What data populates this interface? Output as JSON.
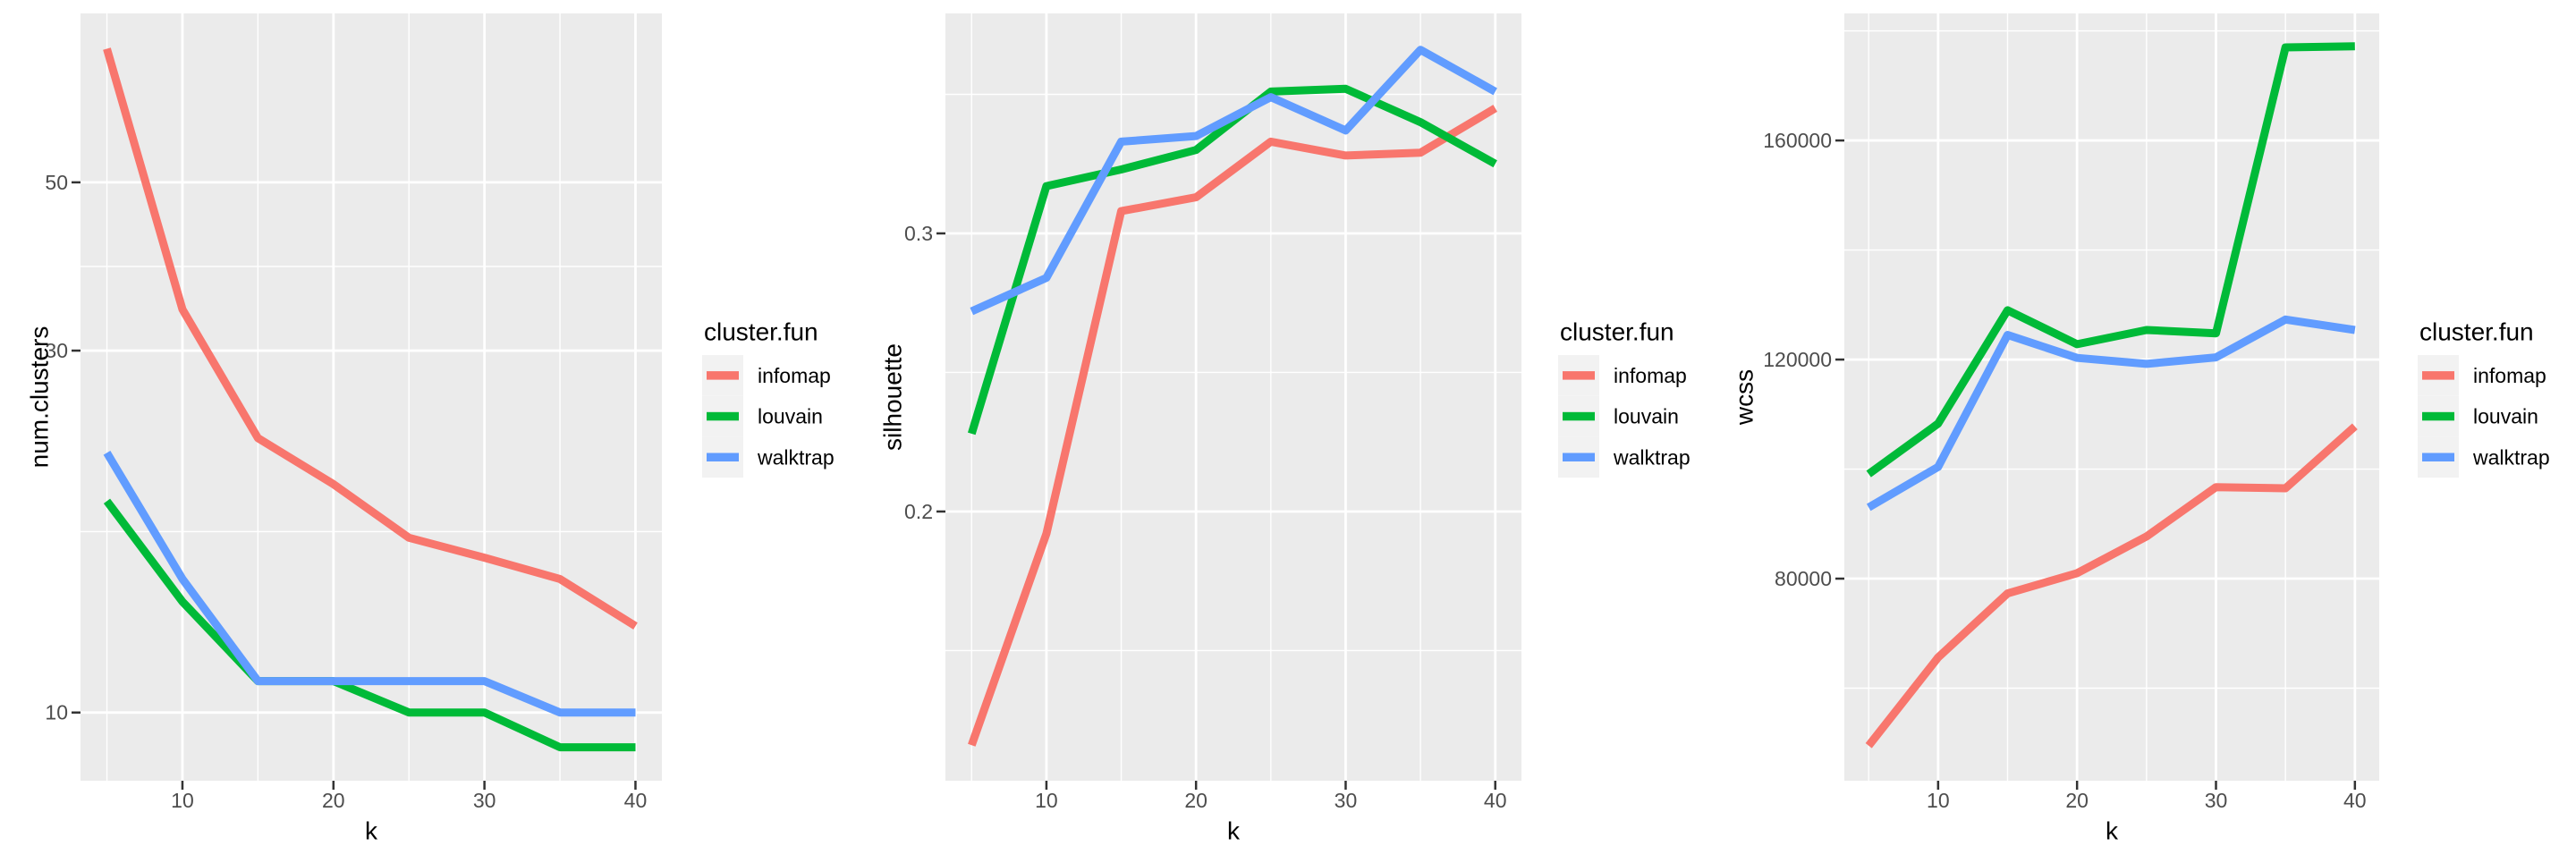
{
  "figure": {
    "background": "#ffffff",
    "panel_bg": "#EBEBEB",
    "grid_color": "#FFFFFF",
    "tick_mark_color": "#333333",
    "tick_label_color": "#4D4D4D",
    "axis_title_color": "#000000",
    "legend_key_bg": "#F2F2F2",
    "legend_text_color": "#000000"
  },
  "legend": {
    "title": "cluster.fun",
    "items": [
      {
        "label": "infomap",
        "color": "#F8766D"
      },
      {
        "label": "louvain",
        "color": "#00BA38"
      },
      {
        "label": "walktrap",
        "color": "#619CFF"
      }
    ]
  },
  "chart_data": [
    {
      "type": "line",
      "title": "",
      "xlabel": "k",
      "ylabel": "num.clusters",
      "legend_title": "cluster.fun",
      "legend_position": "right",
      "grid": true,
      "x": [
        5,
        10,
        15,
        20,
        25,
        30,
        35,
        40
      ],
      "xlim": [
        3.25,
        41.75
      ],
      "x_tick_values": [
        10,
        20,
        30,
        40
      ],
      "x_tick_labels": [
        "10",
        "20",
        "30",
        "40"
      ],
      "x_minor_gridlines": [
        5,
        15,
        25,
        35
      ],
      "yscale": "log10",
      "ylim": [
        8.13,
        83.5
      ],
      "y_tick_values": [
        10,
        30,
        50
      ],
      "y_tick_labels": [
        "10",
        "30",
        "50"
      ],
      "y_minor_gridlines": [
        17.32,
        38.73
      ],
      "series": [
        {
          "name": "infomap",
          "color": "#F8766D",
          "values": [
            75,
            34,
            23,
            20,
            17,
            16,
            15,
            13
          ]
        },
        {
          "name": "louvain",
          "color": "#00BA38",
          "values": [
            19,
            14,
            11,
            11,
            10,
            10,
            9,
            9
          ]
        },
        {
          "name": "walktrap",
          "color": "#619CFF",
          "values": [
            22,
            15,
            11,
            11,
            11,
            11,
            10,
            10
          ]
        }
      ]
    },
    {
      "type": "line",
      "title": "",
      "xlabel": "k",
      "ylabel": "silhouette",
      "legend_title": "cluster.fun",
      "legend_position": "right",
      "grid": true,
      "x": [
        5,
        10,
        15,
        20,
        25,
        30,
        35,
        40
      ],
      "xlim": [
        3.25,
        41.75
      ],
      "x_tick_values": [
        10,
        20,
        30,
        40
      ],
      "x_tick_labels": [
        "10",
        "20",
        "30",
        "40"
      ],
      "x_minor_gridlines": [
        5,
        15,
        25,
        35
      ],
      "yscale": "linear",
      "ylim": [
        0.1032,
        0.3791
      ],
      "y_tick_values": [
        0.2,
        0.3
      ],
      "y_tick_labels": [
        "0.2",
        "0.3"
      ],
      "y_minor_gridlines": [
        0.15,
        0.25,
        0.35
      ],
      "series": [
        {
          "name": "infomap",
          "color": "#F8766D",
          "values": [
            0.116,
            0.192,
            0.308,
            0.313,
            0.333,
            0.328,
            0.329,
            0.345
          ]
        },
        {
          "name": "louvain",
          "color": "#00BA38",
          "values": [
            0.228,
            0.317,
            0.323,
            0.33,
            0.351,
            0.352,
            0.34,
            0.325
          ]
        },
        {
          "name": "walktrap",
          "color": "#619CFF",
          "values": [
            0.272,
            0.284,
            0.333,
            0.335,
            0.349,
            0.337,
            0.366,
            0.351
          ]
        }
      ]
    },
    {
      "type": "line",
      "title": "",
      "xlabel": "k",
      "ylabel": "wcss",
      "legend_title": "cluster.fun",
      "legend_position": "right",
      "grid": true,
      "x": [
        5,
        10,
        15,
        20,
        25,
        30,
        35,
        40
      ],
      "xlim": [
        3.25,
        41.75
      ],
      "x_tick_values": [
        10,
        20,
        30,
        40
      ],
      "x_tick_labels": [
        "10",
        "20",
        "30",
        "40"
      ],
      "x_minor_gridlines": [
        5,
        15,
        25,
        35
      ],
      "yscale": "linear",
      "ylim": [
        43100,
        183200
      ],
      "y_tick_values": [
        80000,
        120000,
        160000
      ],
      "y_tick_labels": [
        "80000",
        "120000",
        "160000"
      ],
      "y_minor_gridlines": [
        60000,
        100000,
        140000,
        180000
      ],
      "series": [
        {
          "name": "infomap",
          "color": "#F8766D",
          "values": [
            49500,
            65600,
            77300,
            81000,
            87700,
            96700,
            96500,
            107800
          ]
        },
        {
          "name": "louvain",
          "color": "#00BA38",
          "values": [
            99100,
            108300,
            129000,
            122800,
            125400,
            124800,
            177000,
            177200
          ]
        },
        {
          "name": "walktrap",
          "color": "#619CFF",
          "values": [
            93000,
            100400,
            124500,
            120300,
            119200,
            120400,
            127300,
            125400
          ]
        }
      ]
    }
  ]
}
